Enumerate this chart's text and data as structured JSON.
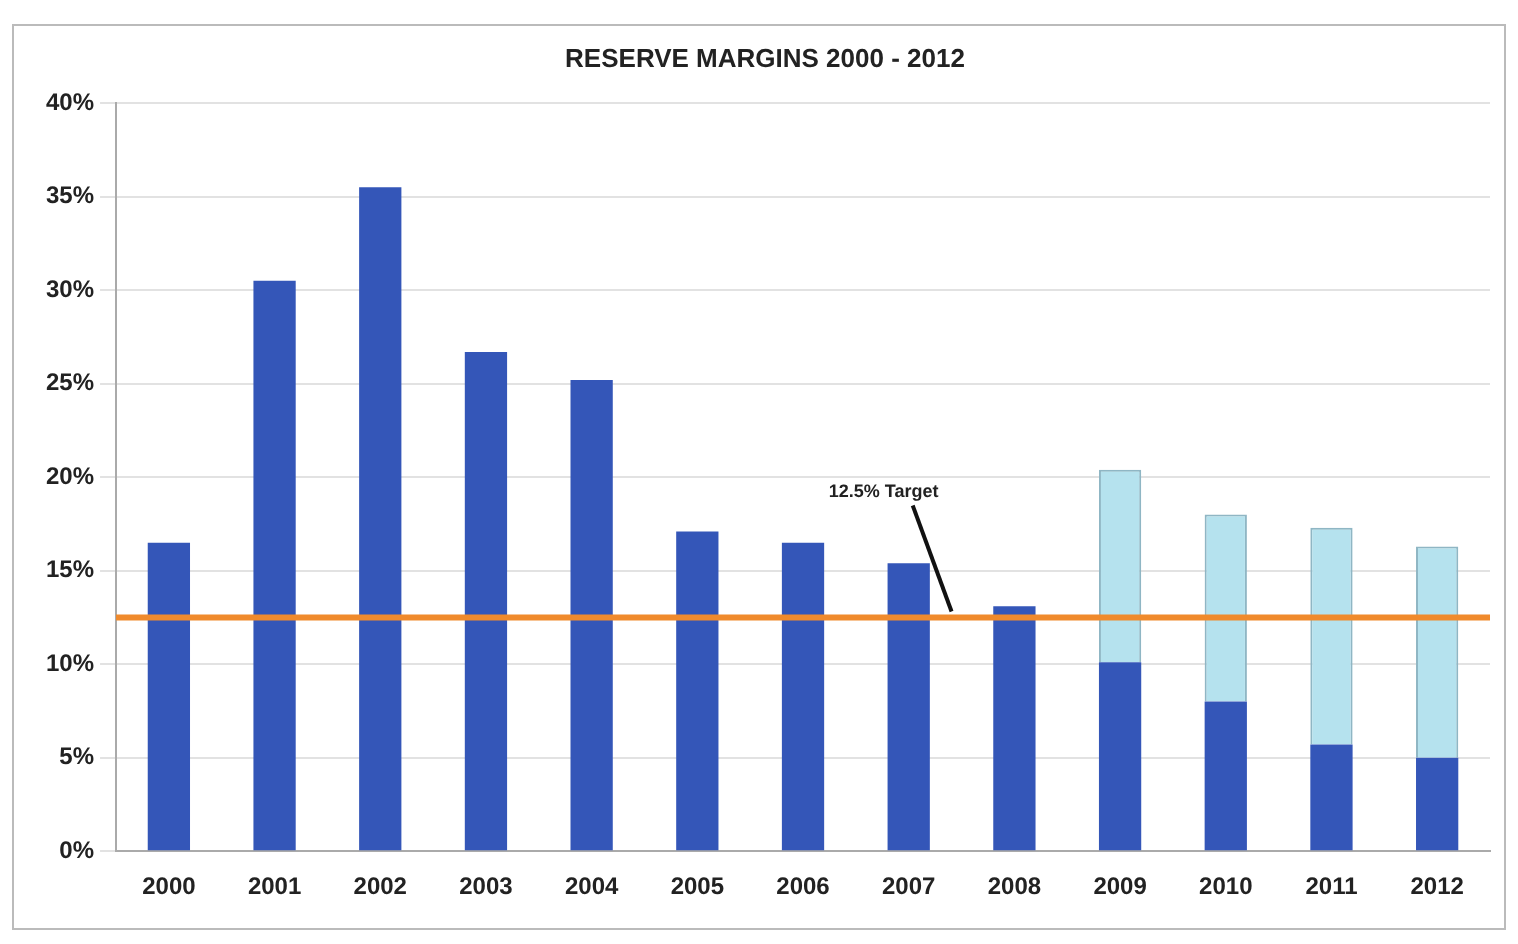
{
  "chart_data": {
    "type": "bar",
    "title": "RESERVE MARGINS 2000 - 2012",
    "stacked": true,
    "categories": [
      "2000",
      "2001",
      "2002",
      "2003",
      "2004",
      "2005",
      "2006",
      "2007",
      "2008",
      "2009",
      "2010",
      "2011",
      "2012"
    ],
    "series": [
      {
        "color": "#3456b8",
        "values": [
          16.5,
          30.5,
          35.5,
          26.7,
          25.2,
          17.1,
          16.5,
          15.4,
          13.1,
          10.1,
          8.0,
          5.7,
          5.0
        ]
      },
      {
        "color": "#b5e2ee",
        "values": [
          null,
          null,
          null,
          null,
          null,
          null,
          null,
          null,
          null,
          10.3,
          10.0,
          11.6,
          11.3
        ]
      }
    ],
    "ylim": [
      0,
      40
    ],
    "yticks": [
      {
        "value": 0,
        "label": "0%"
      },
      {
        "value": 5,
        "label": "5%"
      },
      {
        "value": 10,
        "label": "10%"
      },
      {
        "value": 15,
        "label": "15%"
      },
      {
        "value": 20,
        "label": "20%"
      },
      {
        "value": 25,
        "label": "25%"
      },
      {
        "value": 30,
        "label": "30%"
      },
      {
        "value": 35,
        "label": "35%"
      },
      {
        "value": 40,
        "label": "40%"
      }
    ],
    "grid": "y",
    "legend": false,
    "ref_lines": [
      {
        "axis": "y",
        "value": 12.5,
        "label": "12.5% Target",
        "color": "#f08a2c"
      }
    ]
  }
}
